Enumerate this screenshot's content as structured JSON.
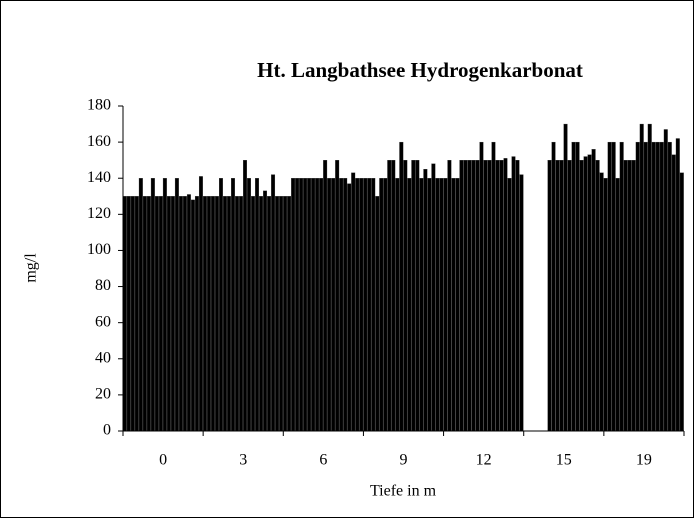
{
  "chart_data": {
    "type": "bar",
    "title": "Ht. Langbathsee  Hydrogenkarbonat",
    "x_label": "Tiefe in m",
    "y_label": "mg/l",
    "categories": [
      "0",
      "3",
      "6",
      "9",
      "12",
      "15",
      "19"
    ],
    "ylim": [
      0,
      180
    ],
    "yticks": [
      0,
      20,
      40,
      60,
      80,
      100,
      120,
      140,
      160,
      180
    ],
    "series": [
      {
        "color": "#000000",
        "values": [
          130,
          130,
          130,
          140,
          140,
          null,
          140
        ]
      },
      {
        "color": "#000000",
        "values": [
          130,
          130,
          130,
          140,
          150,
          null,
          160
        ]
      },
      {
        "color": "#000000",
        "values": [
          130,
          130,
          140,
          140,
          140,
          null,
          160
        ]
      },
      {
        "color": "#000000",
        "values": [
          130,
          130,
          140,
          130,
          140,
          null,
          140
        ]
      },
      {
        "color": "#000000",
        "values": [
          140,
          140,
          140,
          140,
          150,
          null,
          160
        ]
      },
      {
        "color": "#000000",
        "values": [
          130,
          130,
          140,
          140,
          150,
          null,
          150
        ]
      },
      {
        "color": "#000000",
        "values": [
          130,
          130,
          140,
          150,
          150,
          150,
          150
        ]
      },
      {
        "color": "#000000",
        "values": [
          140,
          140,
          140,
          150,
          150,
          160,
          150
        ]
      },
      {
        "color": "#000000",
        "values": [
          130,
          130,
          140,
          140,
          150,
          150,
          160
        ]
      },
      {
        "color": "#000000",
        "values": [
          130,
          130,
          140,
          160,
          160,
          150,
          170
        ]
      },
      {
        "color": "#000000",
        "values": [
          140,
          150,
          150,
          150,
          150,
          170,
          160
        ]
      },
      {
        "color": "#000000",
        "values": [
          130,
          140,
          140,
          140,
          150,
          150,
          170
        ]
      },
      {
        "color": "#000000",
        "values": [
          130,
          130,
          140,
          150,
          160,
          160,
          160
        ]
      },
      {
        "color": "#000000",
        "values": [
          140,
          140,
          150,
          150,
          150,
          160,
          160
        ]
      },
      {
        "color": "#000000",
        "values": [
          130,
          130,
          140,
          140,
          150,
          150,
          160
        ]
      },
      {
        "color": "#000000",
        "values": [
          130,
          133,
          140,
          145,
          151,
          152,
          167
        ]
      },
      {
        "color": "#000000",
        "values": [
          131,
          130,
          137,
          140,
          140,
          153,
          160
        ]
      },
      {
        "color": "#000000",
        "values": [
          128,
          142,
          143,
          148,
          152,
          156,
          153
        ]
      },
      {
        "color": "#000000",
        "values": [
          130,
          130,
          140,
          140,
          150,
          150,
          162
        ]
      },
      {
        "color": "#000000",
        "values": [
          141,
          130,
          140,
          140,
          142,
          143,
          143
        ]
      }
    ]
  }
}
